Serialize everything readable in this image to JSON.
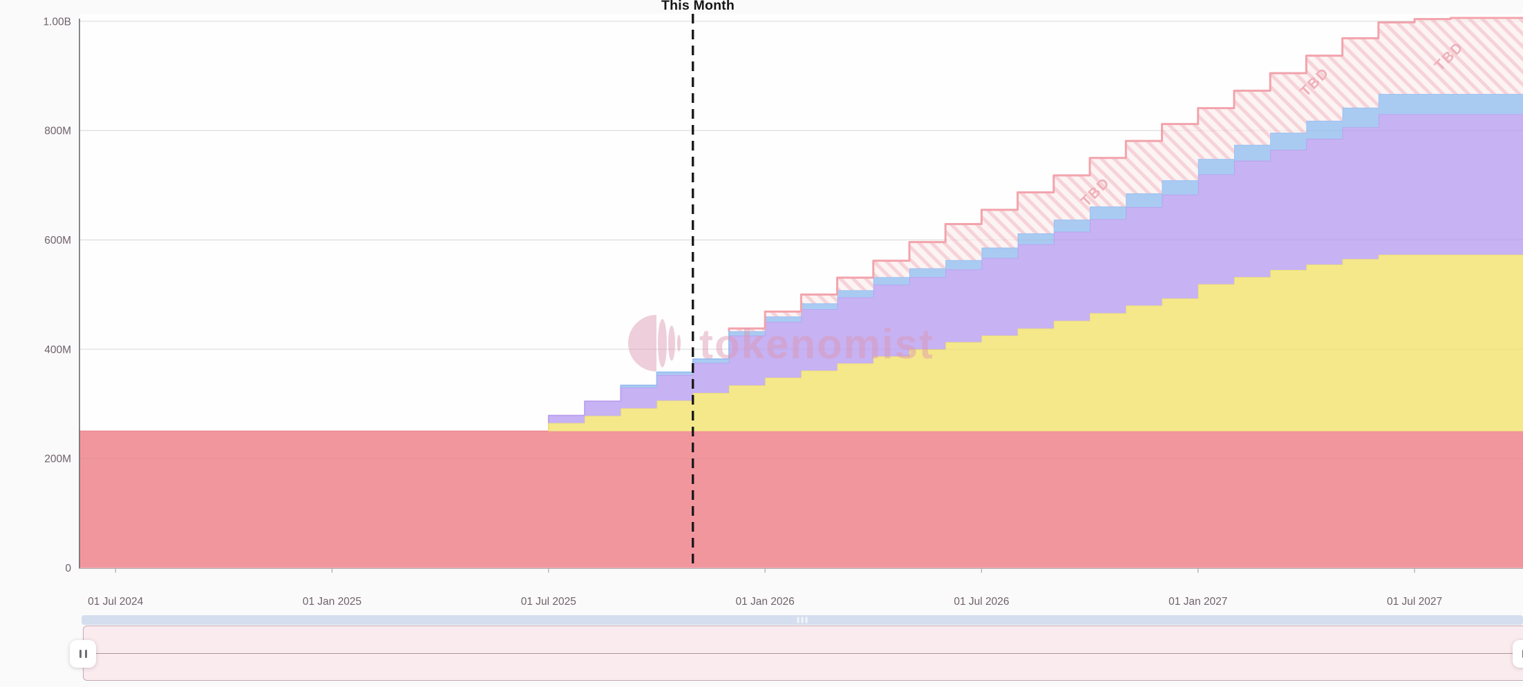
{
  "page": {
    "background": "#fafafb",
    "plot_background": "#fefefe"
  },
  "marker": {
    "label": "This Month",
    "month_index": 17,
    "line_color": "#1c1c1c"
  },
  "watermark": {
    "brand": "tokenomist",
    "color": "rgba(219,148,176,0.45)"
  },
  "controls": {
    "scrollbar": {
      "color": "#d5deee",
      "grip_icon": "drag-bars"
    },
    "range_selector": {
      "bg": "#faebef",
      "border": "#c7a8b3",
      "handle_icon": "grip-vertical"
    }
  },
  "chart_data": {
    "type": "area",
    "variant": "stacked-step-monthly",
    "title": "",
    "xlabel": "",
    "ylabel": "",
    "unit": "tokens (M = millions, B = billions)",
    "x_domain": [
      "Jun 2024",
      "Oct 2027"
    ],
    "x_months_step": 1,
    "ylim": [
      0,
      1000
    ],
    "grid": "horizontal",
    "legend_position": "none",
    "axis_text_color": "#6f6168",
    "y_ticks": [
      {
        "v": 0,
        "label": "0"
      },
      {
        "v": 200,
        "label": "200M"
      },
      {
        "v": 400,
        "label": "400M"
      },
      {
        "v": 600,
        "label": "600M"
      },
      {
        "v": 800,
        "label": "800M"
      },
      {
        "v": 1000,
        "label": "1.00B"
      }
    ],
    "x_ticks": [
      {
        "i": 1,
        "label": "01 Jul 2024"
      },
      {
        "i": 7,
        "label": "01 Jan 2025"
      },
      {
        "i": 13,
        "label": "01 Jul 2025"
      },
      {
        "i": 19,
        "label": "01 Jan 2026"
      },
      {
        "i": 25,
        "label": "01 Jul 2026"
      },
      {
        "i": 31,
        "label": "01 Jan 2027"
      },
      {
        "i": 37,
        "label": "01 Jul 2027"
      }
    ],
    "series": [
      {
        "name": "red",
        "color": "#F2969E",
        "line": "#EE8A94",
        "values": [
          250,
          250,
          250,
          250,
          250,
          250,
          250,
          250,
          250,
          250,
          250,
          250,
          250,
          250,
          250,
          250,
          250,
          250,
          250,
          250,
          250,
          250,
          250,
          250,
          250,
          250,
          250,
          250,
          250,
          250,
          250,
          250,
          250,
          250,
          250,
          250,
          250,
          250,
          250,
          250,
          250
        ]
      },
      {
        "name": "yellow",
        "color": "#F5E88B",
        "line": "#EDDE74",
        "values": [
          0,
          0,
          0,
          0,
          0,
          0,
          0,
          0,
          0,
          0,
          0,
          0,
          0,
          15,
          28,
          42,
          56,
          70,
          84,
          98,
          111,
          124,
          137,
          150,
          163,
          175,
          188,
          202,
          216,
          230,
          243,
          269,
          282,
          295,
          305,
          315,
          323,
          323,
          323,
          323,
          323
        ]
      },
      {
        "name": "purple",
        "color": "#C7B2F3",
        "line": "#B9A0EF",
        "values": [
          0,
          0,
          0,
          0,
          0,
          0,
          0,
          0,
          0,
          0,
          0,
          0,
          0,
          14,
          27,
          38,
          47,
          55,
          91,
          102,
          112,
          121,
          131,
          132,
          133,
          142,
          154,
          163,
          172,
          180,
          190,
          201,
          213,
          220,
          230,
          241,
          257,
          257,
          257,
          257,
          257
        ]
      },
      {
        "name": "blue",
        "color": "#A9CBF2",
        "line": "#97BEEF",
        "values": [
          0,
          0,
          0,
          0,
          0,
          0,
          0,
          0,
          0,
          0,
          0,
          0,
          0,
          0,
          0,
          4,
          5,
          7,
          8,
          10,
          11,
          13,
          14,
          16,
          17,
          19,
          20,
          22,
          23,
          25,
          26,
          28,
          29,
          31,
          33,
          36,
          37,
          37,
          37,
          37,
          37
        ]
      },
      {
        "name": "tbd",
        "label": "TBD",
        "hatched": true,
        "color": "#FCF3F3",
        "hatch_line": "#F6D3D8",
        "line": "#F2A3AC",
        "text_color": "#EFB0B9",
        "values": [
          0,
          0,
          0,
          0,
          0,
          0,
          0,
          0,
          0,
          0,
          0,
          0,
          0,
          0,
          0,
          0,
          0,
          0,
          5,
          9,
          16,
          23,
          30,
          48,
          66,
          69,
          75,
          81,
          89,
          96,
          103,
          93,
          99,
          109,
          119,
          127,
          131,
          137,
          139,
          139,
          139
        ]
      }
    ],
    "tbd_annotations": [
      {
        "i": 28.25,
        "v": 682,
        "label": "TBD"
      },
      {
        "i": 34.33,
        "v": 883,
        "label": "TBD"
      },
      {
        "i": 38.05,
        "v": 930,
        "label": "TBD"
      }
    ]
  }
}
